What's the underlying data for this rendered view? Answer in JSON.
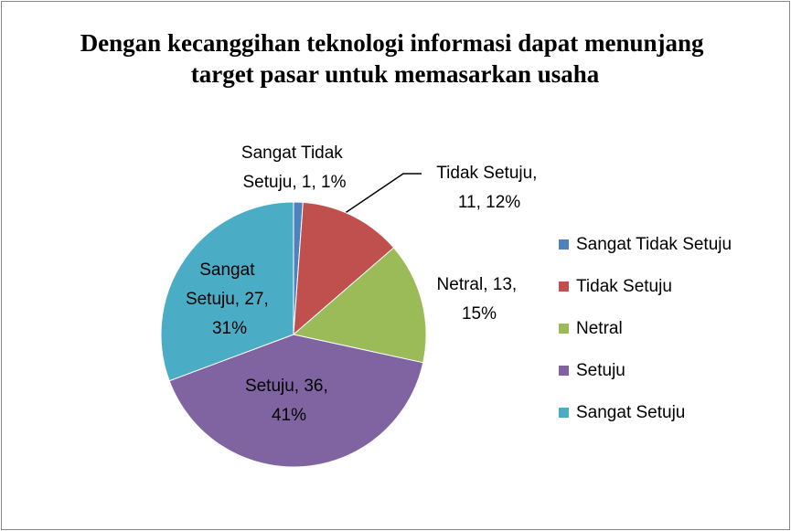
{
  "chart_data": {
    "type": "pie",
    "title": "Dengan kecanggihan teknologi informasi dapat menunjang target pasar untuk memasarkan usaha",
    "categories": [
      "Sangat Tidak Setuju",
      "Tidak Setuju",
      "Netral",
      "Setuju",
      "Sangat Setuju"
    ],
    "values": [
      1,
      11,
      13,
      36,
      27
    ],
    "value_labels": [
      "Sangat Tidak Setuju, 1, 1%",
      "Tidak Setuju, 11, 12%",
      "Netral, 13, 15%",
      "Setuju, 36, 41%",
      "Sangat Setuju, 27, 31%"
    ],
    "colors": [
      "#4f81bd",
      "#c0504d",
      "#9bbb59",
      "#8064a2",
      "#4bacc6"
    ],
    "legend": "right"
  }
}
